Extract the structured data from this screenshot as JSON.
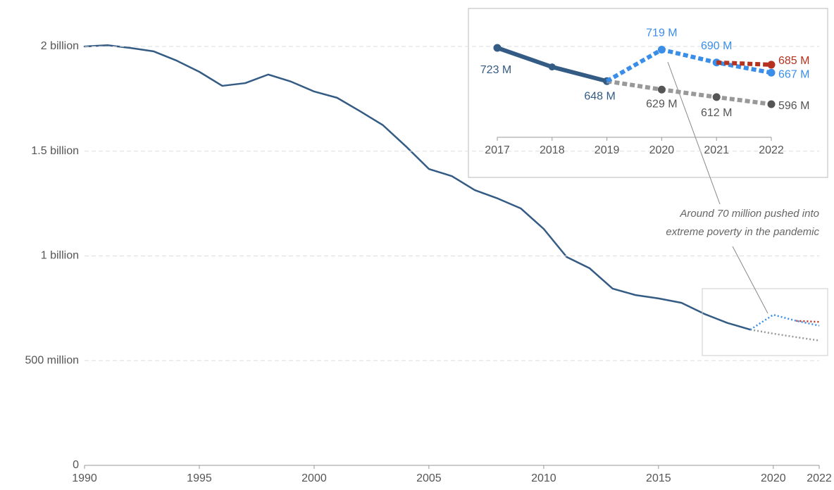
{
  "chart_data": [
    {
      "type": "line",
      "x": [
        1990,
        1991,
        1992,
        1993,
        1994,
        1995,
        1996,
        1997,
        1998,
        1999,
        2000,
        2001,
        2002,
        2003,
        2004,
        2005,
        2006,
        2007,
        2008,
        2009,
        2010,
        2011,
        2012,
        2013,
        2014,
        2015,
        2016,
        2017,
        2018,
        2019,
        2020,
        2021,
        2022
      ],
      "series": [
        {
          "color": "#345b84",
          "dashed": false,
          "values": [
            2000000000,
            2006000000,
            1993000000,
            1977000000,
            1933000000,
            1879000000,
            1812000000,
            1825000000,
            1866000000,
            1832000000,
            1785000000,
            1755000000,
            1691000000,
            1624000000,
            1523000000,
            1415000000,
            1381000000,
            1314000000,
            1274000000,
            1227000000,
            1129000000,
            995000000,
            941000000,
            844000000,
            813000000,
            797000000,
            776000000,
            723000000,
            680000000,
            648000000,
            null,
            null,
            null
          ]
        },
        {
          "color": "#999999",
          "dashed": true,
          "values": [
            null,
            null,
            null,
            null,
            null,
            null,
            null,
            null,
            null,
            null,
            null,
            null,
            null,
            null,
            null,
            null,
            null,
            null,
            null,
            null,
            null,
            null,
            null,
            null,
            null,
            null,
            null,
            null,
            null,
            648000000,
            629000000,
            612000000,
            596000000
          ]
        },
        {
          "color": "#3b8ee8",
          "dashed": true,
          "values": [
            null,
            null,
            null,
            null,
            null,
            null,
            null,
            null,
            null,
            null,
            null,
            null,
            null,
            null,
            null,
            null,
            null,
            null,
            null,
            null,
            null,
            null,
            null,
            null,
            null,
            null,
            null,
            null,
            null,
            648000000,
            719000000,
            690000000,
            667000000
          ]
        },
        {
          "color": "#b5321f",
          "dashed": true,
          "values": [
            null,
            null,
            null,
            null,
            null,
            null,
            null,
            null,
            null,
            null,
            null,
            null,
            null,
            null,
            null,
            null,
            null,
            null,
            null,
            null,
            null,
            null,
            null,
            null,
            null,
            null,
            null,
            null,
            null,
            null,
            null,
            690000000,
            685000000
          ]
        }
      ],
      "xlim": [
        1990,
        2022
      ],
      "xticks": [
        1990,
        1995,
        2000,
        2005,
        2010,
        2015,
        2020,
        2022
      ],
      "ylim": [
        0,
        2000000000
      ],
      "yticks": [
        0,
        {
          "value": 500000000,
          "label": "500 million"
        },
        {
          "value": 1000000000,
          "label": "1 billion"
        },
        {
          "value": 1500000000,
          "label": "1.5 billion"
        },
        {
          "value": 2000000000,
          "label": "2 billion"
        }
      ],
      "grid": true,
      "annotation": [
        "Around 70 million pushed into",
        "extreme poverty in the pandemic"
      ]
    },
    {
      "type": "line",
      "x": [
        2017,
        2018,
        2019,
        2020,
        2021,
        2022
      ],
      "xlim": [
        2017,
        2022
      ],
      "xticks": [
        2017,
        2018,
        2019,
        2020,
        2021,
        2022
      ],
      "series": [
        {
          "color": "#345b84",
          "dashed": false,
          "values": [
            723,
            680,
            648,
            null,
            null,
            null
          ],
          "value_labels": [
            "723 M",
            null,
            "648 M",
            null,
            null,
            null
          ]
        },
        {
          "color": "#999999",
          "dashed": true,
          "values": [
            null,
            null,
            648,
            629,
            612,
            596
          ],
          "value_labels": [
            null,
            null,
            null,
            "629 M",
            "612 M",
            "596 M"
          ]
        },
        {
          "color": "#3b8ee8",
          "dashed": true,
          "values": [
            null,
            null,
            648,
            719,
            690,
            667
          ],
          "value_labels": [
            null,
            null,
            null,
            "719 M",
            "690 M",
            "667 M"
          ]
        },
        {
          "color": "#b5321f",
          "dashed": true,
          "values": [
            null,
            null,
            null,
            null,
            690,
            685
          ],
          "value_labels": [
            null,
            null,
            null,
            null,
            null,
            "685 M"
          ]
        }
      ]
    }
  ]
}
